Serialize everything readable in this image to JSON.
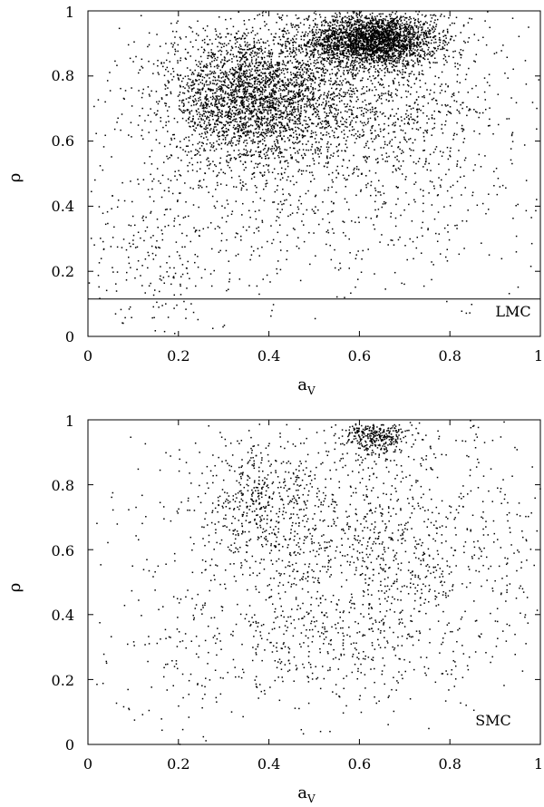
{
  "chart_data": [
    {
      "type": "scatter",
      "panel_label": "LMC",
      "xlabel_main": "a",
      "xlabel_sub": "V",
      "ylabel": "ρ",
      "xlim": [
        0,
        1
      ],
      "ylim": [
        0,
        1
      ],
      "x_ticks": [
        "0",
        "0.2",
        "0.4",
        "0.6",
        "0.8",
        "1"
      ],
      "y_ticks": [
        "0",
        "0.2",
        "0.4",
        "0.6",
        "0.8",
        "1"
      ],
      "reference_line_y": 0.115,
      "clusters": [
        {
          "cx": 0.63,
          "cy": 0.91,
          "sx": 0.07,
          "sy": 0.04,
          "count": 2600,
          "clip_top": 1.0
        },
        {
          "cx": 0.36,
          "cy": 0.73,
          "sx": 0.09,
          "sy": 0.1,
          "count": 2300,
          "clip_top": 1.0
        },
        {
          "cx": 0.55,
          "cy": 0.75,
          "sx": 0.18,
          "sy": 0.13,
          "count": 1600,
          "clip_top": 1.0
        },
        {
          "cx": 0.5,
          "cy": 0.45,
          "sx": 0.28,
          "sy": 0.17,
          "count": 700,
          "clip_top": 1.0
        },
        {
          "cx": 0.18,
          "cy": 0.22,
          "sx": 0.09,
          "sy": 0.12,
          "count": 160,
          "clip_top": 1.0
        }
      ]
    },
    {
      "type": "scatter",
      "panel_label": "SMC",
      "xlabel_main": "a",
      "xlabel_sub": "V",
      "ylabel": "ρ",
      "xlim": [
        0,
        1
      ],
      "ylim": [
        0,
        1
      ],
      "x_ticks": [
        "0",
        "0.2",
        "0.4",
        "0.6",
        "0.8",
        "1"
      ],
      "y_ticks": [
        "0",
        "0.2",
        "0.4",
        "0.6",
        "0.8",
        "1"
      ],
      "clusters": [
        {
          "cx": 0.64,
          "cy": 0.95,
          "sx": 0.035,
          "sy": 0.03,
          "count": 320,
          "clip_top": 0.985
        },
        {
          "cx": 0.38,
          "cy": 0.76,
          "sx": 0.06,
          "sy": 0.08,
          "count": 300,
          "clip_top": 1.0
        },
        {
          "cx": 0.6,
          "cy": 0.6,
          "sx": 0.22,
          "sy": 0.2,
          "count": 1500,
          "clip_top": 1.0
        },
        {
          "cx": 0.55,
          "cy": 0.3,
          "sx": 0.15,
          "sy": 0.09,
          "count": 250,
          "clip_top": 1.0
        },
        {
          "cx": 0.18,
          "cy": 0.2,
          "sx": 0.09,
          "sy": 0.12,
          "count": 60,
          "clip_top": 1.0
        }
      ]
    }
  ]
}
